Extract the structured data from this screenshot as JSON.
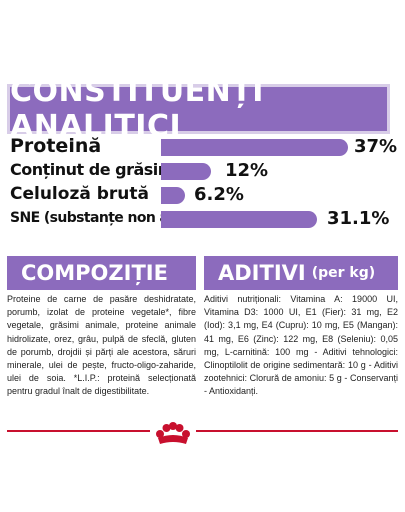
{
  "header": {
    "title": "CONSTITUENȚI ANALITICI"
  },
  "analytics": [
    {
      "label": "Proteină",
      "value": "37%",
      "fraction": 1.0
    },
    {
      "label": "Conținut de grăsimi",
      "value": "12%",
      "fraction": 0.32
    },
    {
      "label": "Celuloză brută",
      "value": "6.2%",
      "fraction": 0.17
    },
    {
      "label": "SNE (substanțe non azotate)",
      "value": "31.1%",
      "fraction": 0.84
    }
  ],
  "composition": {
    "title": "COMPOZIȚIE",
    "text": "Proteine de carne de pasăre deshidratate, porumb, izolat de proteine vegetale*, fibre vegetale, grăsimi animale, proteine animale hidrolizate, orez, grâu, pulpă de sfeclă, gluten de porumb, drojdii și părți ale acestora, săruri minerale, ulei de pește, fructo-oligo-zaharide, ulei de soia. *L.I.P.: proteină selecționată pentru gradul înalt de digestibilitate."
  },
  "additives": {
    "title": "ADITIVI",
    "suffix": "(per kg)",
    "text": "Aditivi nutriționali: Vitamina A: 19000 UI, Vitamina D3: 1000 UI, E1 (Fier): 31 mg, E2 (Iod): 3,1 mg, E4 (Cupru): 10 mg, E5 (Mangan): 41 mg, E6 (Zinc): 122 mg, E8 (Seleniu): 0,05 mg, L-carnitină: 100 mg - Aditivi tehnologici: Clinoptilolit de origine sedimentară: 10 g - Aditivi zootehnici: Clorură de amoniu: 5 g - Conservanți - Antioxidanți."
  },
  "colors": {
    "accent": "#8c6bbd",
    "brand_red": "#c8102e"
  }
}
